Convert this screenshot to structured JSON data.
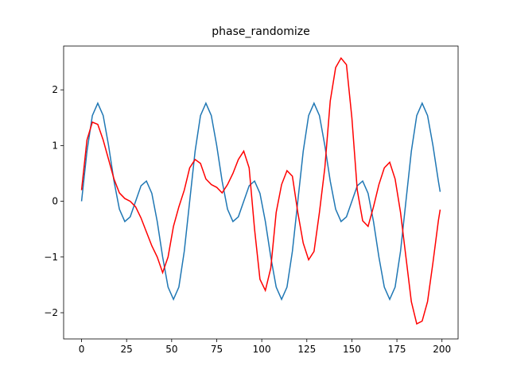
{
  "chart_data": {
    "type": "line",
    "title": "phase_randomize",
    "x": [
      0,
      3,
      6,
      9,
      12,
      15,
      18,
      21,
      24,
      27,
      30,
      33,
      36,
      39,
      42,
      45,
      48,
      51,
      54,
      57,
      60,
      63,
      66,
      69,
      72,
      75,
      78,
      81,
      84,
      87,
      90,
      93,
      96,
      99,
      102,
      105,
      108,
      111,
      114,
      117,
      120,
      123,
      126,
      129,
      132,
      135,
      138,
      141,
      144,
      147,
      150,
      153,
      156,
      159,
      162,
      165,
      168,
      171,
      174,
      177,
      180,
      183,
      186,
      189,
      192,
      195,
      198,
      199
    ],
    "series": [
      {
        "color": "#1f77b4",
        "values": [
          0,
          0.897,
          1.539,
          1.76,
          1.539,
          1.0,
          0.363,
          -0.142,
          -0.363,
          -0.279,
          0,
          0.279,
          0.363,
          0.142,
          -0.363,
          -1.0,
          -1.539,
          -1.76,
          -1.539,
          -0.897,
          0,
          0.897,
          1.539,
          1.76,
          1.539,
          1.0,
          0.363,
          -0.142,
          -0.363,
          -0.279,
          0,
          0.279,
          0.363,
          0.142,
          -0.363,
          -1.0,
          -1.539,
          -1.76,
          -1.539,
          -0.897,
          0,
          0.897,
          1.539,
          1.76,
          1.539,
          1.0,
          0.363,
          -0.142,
          -0.363,
          -0.279,
          0,
          0.279,
          0.363,
          0.142,
          -0.363,
          -1.0,
          -1.539,
          -1.76,
          -1.539,
          -0.897,
          0,
          0.897,
          1.539,
          1.76,
          1.539,
          1.0,
          0.363,
          0.171
        ]
      },
      {
        "color": "#ff0000",
        "values": [
          0.2,
          1.1,
          1.42,
          1.38,
          1.1,
          0.75,
          0.4,
          0.15,
          0.05,
          0,
          -0.1,
          -0.3,
          -0.55,
          -0.8,
          -1.0,
          -1.28,
          -1.0,
          -0.45,
          -0.1,
          0.2,
          0.6,
          0.75,
          0.68,
          0.4,
          0.3,
          0.25,
          0.15,
          0.3,
          0.5,
          0.75,
          0.9,
          0.6,
          -0.5,
          -1.4,
          -1.6,
          -1.2,
          -0.2,
          0.3,
          0.55,
          0.45,
          -0.2,
          -0.75,
          -1.05,
          -0.9,
          -0.2,
          0.6,
          1.8,
          2.4,
          2.57,
          2.45,
          1.5,
          0.2,
          -0.35,
          -0.45,
          -0.1,
          0.3,
          0.6,
          0.7,
          0.4,
          -0.2,
          -1.0,
          -1.8,
          -2.2,
          -2.15,
          -1.8,
          -1.1,
          -0.35,
          -0.15
        ]
      }
    ],
    "xlim": [
      -9.95,
      208.95
    ],
    "ylim": [
      -2.47,
      2.786
    ],
    "xticks": [
      0,
      25,
      50,
      75,
      100,
      125,
      150,
      175,
      200
    ],
    "yticks": [
      {
        "value": -2,
        "label": "−2"
      },
      {
        "value": -1,
        "label": "−1"
      },
      0,
      1,
      2
    ]
  }
}
